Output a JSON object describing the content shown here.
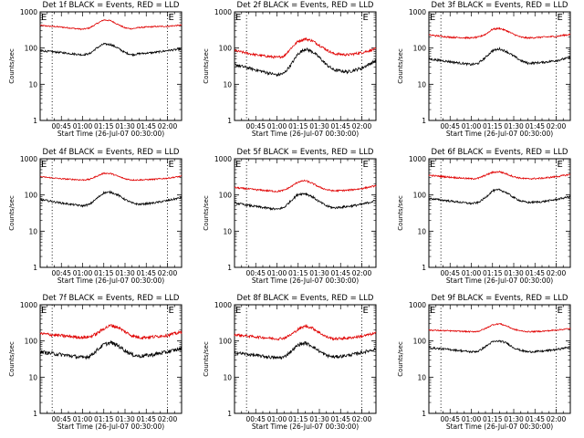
{
  "chart_data": [
    {
      "type": "line",
      "title": "Det 1f BLACK = Events, RED = LLD",
      "xlabel": "Start Time (26-Jul-07 00:30:00)",
      "ylabel": "Counts/sec",
      "yscale": "log",
      "ylim": [
        1,
        1000
      ],
      "xlim_minutes": [
        30,
        130
      ],
      "x_tick_labels": [
        "00:45",
        "01:00",
        "01:15",
        "01:30",
        "01:45",
        "02:00"
      ],
      "y_tick_labels": [
        "1",
        "10",
        "100",
        "1000"
      ],
      "corner_labels": [
        "E",
        "E"
      ],
      "event_marker_minutes": [
        38.5,
        120
      ],
      "grid": false,
      "series": [
        {
          "color": "#e00000",
          "x": [
            30,
            45,
            60,
            65,
            70,
            75,
            80,
            85,
            90,
            95,
            100,
            110,
            120,
            130
          ],
          "y": [
            420,
            380,
            330,
            360,
            470,
            600,
            570,
            450,
            360,
            340,
            370,
            390,
            400,
            430
          ],
          "noise": 0.04
        },
        {
          "color": "#000000",
          "x": [
            30,
            45,
            60,
            65,
            70,
            75,
            80,
            85,
            90,
            95,
            100,
            110,
            120,
            130
          ],
          "y": [
            85,
            75,
            65,
            70,
            100,
            130,
            125,
            100,
            75,
            65,
            70,
            75,
            85,
            95
          ],
          "noise": 0.06
        }
      ]
    },
    {
      "type": "line",
      "title": "Det 2f BLACK = Events, RED = LLD",
      "xlabel": "Start Time (26-Jul-07 00:30:00)",
      "ylabel": "Counts/sec",
      "yscale": "log",
      "ylim": [
        1,
        1000
      ],
      "xlim_minutes": [
        30,
        130
      ],
      "x_tick_labels": [
        "00:45",
        "01:00",
        "01:15",
        "01:30",
        "01:45",
        "02:00"
      ],
      "y_tick_labels": [
        "1",
        "10",
        "100",
        "1000"
      ],
      "corner_labels": [
        "E",
        "E"
      ],
      "event_marker_minutes": [
        38.5,
        120
      ],
      "grid": false,
      "series": [
        {
          "color": "#e00000",
          "x": [
            30,
            45,
            60,
            65,
            70,
            75,
            80,
            85,
            90,
            95,
            100,
            110,
            120,
            130
          ],
          "y": [
            85,
            65,
            55,
            60,
            100,
            155,
            180,
            160,
            120,
            90,
            70,
            65,
            75,
            95
          ],
          "noise": 0.08
        },
        {
          "color": "#000000",
          "x": [
            30,
            45,
            60,
            65,
            70,
            75,
            80,
            85,
            90,
            95,
            100,
            110,
            120,
            130
          ],
          "y": [
            35,
            25,
            18,
            20,
            35,
            70,
            95,
            80,
            55,
            35,
            25,
            22,
            28,
            45
          ],
          "noise": 0.1
        }
      ]
    },
    {
      "type": "line",
      "title": "Det 3f BLACK = Events, RED = LLD",
      "xlabel": "Start Time (26-Jul-07 00:30:00)",
      "ylabel": "Counts/sec",
      "yscale": "log",
      "ylim": [
        1,
        1000
      ],
      "xlim_minutes": [
        30,
        130
      ],
      "x_tick_labels": [
        "00:45",
        "01:00",
        "01:15",
        "01:30",
        "01:45",
        "02:00"
      ],
      "y_tick_labels": [
        "1",
        "10",
        "100",
        "1000"
      ],
      "corner_labels": [
        "E",
        "E"
      ],
      "event_marker_minutes": [
        38.5,
        120
      ],
      "grid": false,
      "series": [
        {
          "color": "#e00000",
          "x": [
            30,
            45,
            60,
            65,
            70,
            75,
            80,
            85,
            90,
            95,
            100,
            110,
            120,
            130
          ],
          "y": [
            230,
            200,
            190,
            200,
            240,
            330,
            350,
            300,
            240,
            200,
            190,
            200,
            210,
            240
          ],
          "noise": 0.05
        },
        {
          "color": "#000000",
          "x": [
            30,
            45,
            60,
            65,
            70,
            75,
            80,
            85,
            90,
            95,
            100,
            110,
            120,
            130
          ],
          "y": [
            50,
            42,
            35,
            38,
            55,
            85,
            95,
            80,
            60,
            45,
            38,
            40,
            45,
            55
          ],
          "noise": 0.07
        }
      ]
    },
    {
      "type": "line",
      "title": "Det 4f BLACK = Events, RED = LLD",
      "xlabel": "Start Time (26-Jul-07 00:30:00)",
      "ylabel": "Counts/sec",
      "yscale": "log",
      "ylim": [
        1,
        1000
      ],
      "xlim_minutes": [
        30,
        130
      ],
      "x_tick_labels": [
        "00:45",
        "01:00",
        "01:15",
        "01:30",
        "01:45",
        "02:00"
      ],
      "y_tick_labels": [
        "1",
        "10",
        "100",
        "1000"
      ],
      "corner_labels": [
        "E",
        "E"
      ],
      "event_marker_minutes": [
        38.5,
        120
      ],
      "grid": false,
      "series": [
        {
          "color": "#e00000",
          "x": [
            30,
            45,
            60,
            65,
            70,
            75,
            80,
            85,
            90,
            95,
            100,
            110,
            120,
            130
          ],
          "y": [
            320,
            280,
            260,
            270,
            330,
            400,
            390,
            330,
            280,
            260,
            260,
            270,
            290,
            330
          ],
          "noise": 0.04
        },
        {
          "color": "#000000",
          "x": [
            30,
            45,
            60,
            65,
            70,
            75,
            80,
            85,
            90,
            95,
            100,
            110,
            120,
            130
          ],
          "y": [
            75,
            60,
            50,
            55,
            80,
            115,
            120,
            100,
            75,
            60,
            55,
            60,
            70,
            85
          ],
          "noise": 0.06
        }
      ]
    },
    {
      "type": "line",
      "title": "Det 5f BLACK = Events, RED = LLD",
      "xlabel": "Start Time (26-Jul-07 00:30:00)",
      "ylabel": "Counts/sec",
      "yscale": "log",
      "ylim": [
        1,
        1000
      ],
      "xlim_minutes": [
        30,
        130
      ],
      "x_tick_labels": [
        "00:45",
        "01:00",
        "01:15",
        "01:30",
        "01:45",
        "02:00"
      ],
      "y_tick_labels": [
        "1",
        "10",
        "100",
        "1000"
      ],
      "corner_labels": [
        "E",
        "E"
      ],
      "event_marker_minutes": [
        38.5,
        120
      ],
      "grid": false,
      "series": [
        {
          "color": "#e00000",
          "x": [
            30,
            45,
            60,
            65,
            70,
            75,
            80,
            85,
            90,
            95,
            100,
            110,
            120,
            130
          ],
          "y": [
            160,
            140,
            125,
            135,
            170,
            230,
            250,
            210,
            165,
            140,
            130,
            135,
            150,
            180
          ],
          "noise": 0.05
        },
        {
          "color": "#000000",
          "x": [
            30,
            45,
            60,
            65,
            70,
            75,
            80,
            85,
            90,
            95,
            100,
            110,
            120,
            130
          ],
          "y": [
            60,
            48,
            40,
            45,
            70,
            105,
            110,
            90,
            65,
            50,
            44,
            48,
            55,
            70
          ],
          "noise": 0.07
        }
      ]
    },
    {
      "type": "line",
      "title": "Det 6f BLACK = Events, RED = LLD",
      "xlabel": "Start Time (26-Jul-07 00:30:00)",
      "ylabel": "Counts/sec",
      "yscale": "log",
      "ylim": [
        1,
        1000
      ],
      "xlim_minutes": [
        30,
        130
      ],
      "x_tick_labels": [
        "00:45",
        "01:00",
        "01:15",
        "01:30",
        "01:45",
        "02:00"
      ],
      "y_tick_labels": [
        "1",
        "10",
        "100",
        "1000"
      ],
      "corner_labels": [
        "E",
        "E"
      ],
      "event_marker_minutes": [
        38.5,
        120
      ],
      "grid": false,
      "series": [
        {
          "color": "#e00000",
          "x": [
            30,
            45,
            60,
            65,
            70,
            75,
            80,
            85,
            90,
            95,
            100,
            110,
            120,
            130
          ],
          "y": [
            350,
            310,
            280,
            290,
            350,
            420,
            440,
            380,
            320,
            290,
            280,
            290,
            320,
            370
          ],
          "noise": 0.05
        },
        {
          "color": "#000000",
          "x": [
            30,
            45,
            60,
            65,
            70,
            75,
            80,
            85,
            90,
            95,
            100,
            110,
            120,
            130
          ],
          "y": [
            80,
            68,
            58,
            62,
            85,
            130,
            140,
            115,
            85,
            68,
            62,
            65,
            75,
            90
          ],
          "noise": 0.06
        }
      ]
    },
    {
      "type": "line",
      "title": "Det 7f BLACK = Events, RED = LLD",
      "xlabel": "Start Time (26-Jul-07 00:30:00)",
      "ylabel": "Counts/sec",
      "yscale": "log",
      "ylim": [
        1,
        1000
      ],
      "xlim_minutes": [
        30,
        130
      ],
      "x_tick_labels": [
        "00:45",
        "01:00",
        "01:15",
        "01:30",
        "01:45",
        "02:00"
      ],
      "y_tick_labels": [
        "1",
        "10",
        "100",
        "1000"
      ],
      "corner_labels": [
        "E",
        "E"
      ],
      "event_marker_minutes": [
        38.5,
        120
      ],
      "grid": false,
      "series": [
        {
          "color": "#e00000",
          "x": [
            30,
            45,
            60,
            65,
            70,
            75,
            80,
            85,
            90,
            95,
            100,
            110,
            120,
            130
          ],
          "y": [
            160,
            140,
            125,
            130,
            160,
            220,
            270,
            240,
            180,
            140,
            125,
            130,
            145,
            175
          ],
          "noise": 0.1
        },
        {
          "color": "#000000",
          "x": [
            30,
            45,
            60,
            65,
            70,
            75,
            80,
            85,
            90,
            95,
            100,
            110,
            120,
            130
          ],
          "y": [
            50,
            42,
            35,
            38,
            55,
            80,
            90,
            75,
            55,
            42,
            38,
            42,
            50,
            62
          ],
          "noise": 0.12
        }
      ]
    },
    {
      "type": "line",
      "title": "Det 8f BLACK = Events, RED = LLD",
      "xlabel": "Start Time (26-Jul-07 00:30:00)",
      "ylabel": "Counts/sec",
      "yscale": "log",
      "ylim": [
        1,
        1000
      ],
      "xlim_minutes": [
        30,
        130
      ],
      "x_tick_labels": [
        "00:45",
        "01:00",
        "01:15",
        "01:30",
        "01:45",
        "02:00"
      ],
      "y_tick_labels": [
        "1",
        "10",
        "100",
        "1000"
      ],
      "corner_labels": [
        "E",
        "E"
      ],
      "event_marker_minutes": [
        38.5,
        120
      ],
      "grid": false,
      "series": [
        {
          "color": "#e00000",
          "x": [
            30,
            45,
            60,
            65,
            70,
            75,
            80,
            85,
            90,
            95,
            100,
            110,
            120,
            130
          ],
          "y": [
            150,
            130,
            115,
            120,
            150,
            210,
            260,
            230,
            170,
            130,
            115,
            120,
            135,
            165
          ],
          "noise": 0.08
        },
        {
          "color": "#000000",
          "x": [
            30,
            45,
            60,
            65,
            70,
            75,
            80,
            85,
            90,
            95,
            100,
            110,
            120,
            130
          ],
          "y": [
            48,
            40,
            34,
            36,
            52,
            78,
            88,
            72,
            52,
            40,
            36,
            40,
            48,
            60
          ],
          "noise": 0.1
        }
      ]
    },
    {
      "type": "line",
      "title": "Det 9f BLACK = Events, RED = LLD",
      "xlabel": "Start Time (26-Jul-07 00:30:00)",
      "ylabel": "Counts/sec",
      "yscale": "log",
      "ylim": [
        1,
        1000
      ],
      "xlim_minutes": [
        30,
        130
      ],
      "x_tick_labels": [
        "00:45",
        "01:00",
        "01:15",
        "01:30",
        "01:45",
        "02:00"
      ],
      "y_tick_labels": [
        "1",
        "10",
        "100",
        "1000"
      ],
      "corner_labels": [
        "E",
        "E"
      ],
      "event_marker_minutes": [
        38.5,
        120
      ],
      "grid": false,
      "series": [
        {
          "color": "#e00000",
          "x": [
            30,
            45,
            60,
            65,
            70,
            75,
            80,
            85,
            90,
            95,
            100,
            110,
            120,
            130
          ],
          "y": [
            200,
            190,
            180,
            185,
            220,
            280,
            300,
            260,
            210,
            190,
            180,
            185,
            200,
            220
          ],
          "noise": 0.04
        },
        {
          "color": "#000000",
          "x": [
            30,
            45,
            60,
            65,
            70,
            75,
            80,
            85,
            90,
            95,
            100,
            110,
            120,
            130
          ],
          "y": [
            65,
            58,
            50,
            52,
            70,
            95,
            100,
            88,
            65,
            55,
            50,
            52,
            58,
            68
          ],
          "noise": 0.06
        }
      ]
    }
  ]
}
